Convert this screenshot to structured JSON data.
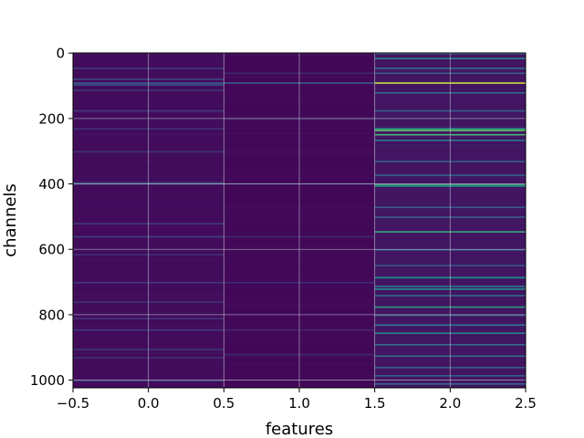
{
  "chart_data": {
    "type": "heatmap",
    "title": "",
    "xlabel": "features",
    "ylabel": "channels",
    "xlim": [
      -0.5,
      2.5
    ],
    "ylim": [
      1023.5,
      -0.5
    ],
    "x_ticks": [
      -0.5,
      0.0,
      0.5,
      1.0,
      1.5,
      2.0,
      2.5
    ],
    "x_tick_labels": [
      "−0.5",
      "0.0",
      "0.5",
      "1.0",
      "1.5",
      "2.0",
      "2.5"
    ],
    "y_ticks": [
      0,
      200,
      400,
      600,
      800,
      1000
    ],
    "y_tick_labels": [
      "0",
      "200",
      "400",
      "600",
      "800",
      "1000"
    ],
    "grid": true,
    "colormap": "viridis",
    "n_columns": 3,
    "n_rows": 1024,
    "column_centers": [
      0,
      1,
      2
    ],
    "value_range": [
      0.0,
      1.0
    ],
    "columns": [
      {
        "feature": 0,
        "background": 0.03,
        "highlights": [
          {
            "channel": 45,
            "value": 0.18
          },
          {
            "channel": 78,
            "value": 0.22
          },
          {
            "channel": 90,
            "value": 0.3
          },
          {
            "channel": 96,
            "value": 0.25
          },
          {
            "channel": 112,
            "value": 0.16
          },
          {
            "channel": 175,
            "value": 0.18
          },
          {
            "channel": 230,
            "value": 0.15
          },
          {
            "channel": 300,
            "value": 0.15
          },
          {
            "channel": 395,
            "value": 0.2
          },
          {
            "channel": 398,
            "value": 0.28
          },
          {
            "channel": 520,
            "value": 0.18
          },
          {
            "channel": 560,
            "value": 0.2
          },
          {
            "channel": 615,
            "value": 0.15
          },
          {
            "channel": 700,
            "value": 0.18
          },
          {
            "channel": 760,
            "value": 0.16
          },
          {
            "channel": 810,
            "value": 0.15
          },
          {
            "channel": 845,
            "value": 0.18
          },
          {
            "channel": 905,
            "value": 0.15
          },
          {
            "channel": 930,
            "value": 0.15
          },
          {
            "channel": 1000,
            "value": 0.18
          }
        ]
      },
      {
        "feature": 1,
        "background": 0.02,
        "highlights": [
          {
            "channel": 60,
            "value": 0.12
          },
          {
            "channel": 90,
            "value": 0.28
          },
          {
            "channel": 200,
            "value": 0.12
          },
          {
            "channel": 398,
            "value": 0.15
          },
          {
            "channel": 560,
            "value": 0.12
          },
          {
            "channel": 700,
            "value": 0.14
          },
          {
            "channel": 845,
            "value": 0.12
          },
          {
            "channel": 920,
            "value": 0.12
          }
        ]
      },
      {
        "feature": 2,
        "background": 0.06,
        "highlights": [
          {
            "channel": 0,
            "value": 0.3
          },
          {
            "channel": 15,
            "value": 0.45
          },
          {
            "channel": 45,
            "value": 0.35
          },
          {
            "channel": 60,
            "value": 0.3
          },
          {
            "channel": 90,
            "value": 0.92
          },
          {
            "channel": 120,
            "value": 0.35
          },
          {
            "channel": 175,
            "value": 0.3
          },
          {
            "channel": 230,
            "value": 0.55
          },
          {
            "channel": 235,
            "value": 0.75
          },
          {
            "channel": 248,
            "value": 0.65
          },
          {
            "channel": 265,
            "value": 0.4
          },
          {
            "channel": 330,
            "value": 0.3
          },
          {
            "channel": 372,
            "value": 0.3
          },
          {
            "channel": 400,
            "value": 0.6
          },
          {
            "channel": 405,
            "value": 0.5
          },
          {
            "channel": 470,
            "value": 0.28
          },
          {
            "channel": 500,
            "value": 0.3
          },
          {
            "channel": 545,
            "value": 0.6
          },
          {
            "channel": 600,
            "value": 0.3
          },
          {
            "channel": 648,
            "value": 0.28
          },
          {
            "channel": 685,
            "value": 0.5
          },
          {
            "channel": 712,
            "value": 0.4
          },
          {
            "channel": 720,
            "value": 0.5
          },
          {
            "channel": 740,
            "value": 0.35
          },
          {
            "channel": 775,
            "value": 0.55
          },
          {
            "channel": 800,
            "value": 0.35
          },
          {
            "channel": 830,
            "value": 0.4
          },
          {
            "channel": 855,
            "value": 0.45
          },
          {
            "channel": 890,
            "value": 0.35
          },
          {
            "channel": 925,
            "value": 0.35
          },
          {
            "channel": 960,
            "value": 0.3
          },
          {
            "channel": 985,
            "value": 0.3
          },
          {
            "channel": 1010,
            "value": 0.35
          }
        ]
      }
    ]
  }
}
